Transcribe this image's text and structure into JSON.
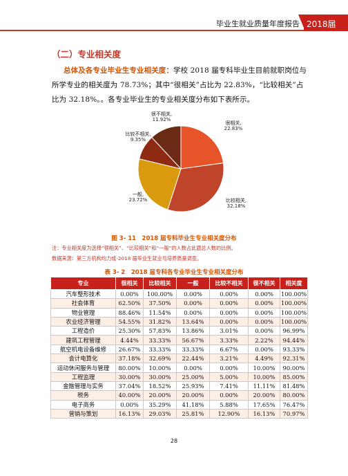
{
  "header": {
    "title": "毕业生就业质量年度报告",
    "year": "2018届"
  },
  "section": {
    "title": "（二）专业相关度"
  },
  "paragraph": {
    "lead": "总体及各专业毕业生专业相关度：",
    "body": "学校 2018 届专科毕业生目前就职岗位与所学专业的相关度为 78.73%；其中“很相关”占比为 22.83%，“比较相关”占比为 32.18%。。各专业毕业生的专业相关度分布如下表所示。"
  },
  "chart_data": {
    "type": "pie",
    "slices": [
      {
        "label": "很相关,",
        "value": 22.83,
        "value_label": "22.83%",
        "color": "#e8542a"
      },
      {
        "label": "比较相关,",
        "value": 32.18,
        "value_label": "32.18%",
        "color": "#c0442a"
      },
      {
        "label": "一般,",
        "value": 23.72,
        "value_label": "23.72%",
        "color": "#d99a0e"
      },
      {
        "label": "比较不相关,",
        "value": 9.35,
        "value_label": "9.35%",
        "color": "#8f2a12"
      },
      {
        "label": "很不相关,",
        "value": 11.92,
        "value_label": "11.92%",
        "color": "#6b2a14"
      }
    ]
  },
  "figure": {
    "caption": "图 3- 11　2018 届专科毕业生专业相关度分布"
  },
  "notes": {
    "line1": "注：专业相关度为选择“很相关”、“比较相关”和“一般”的人数占此题总人数的比例。",
    "line2": "数据来源：第三方机构均力成-2018 届毕业生就业与培养质量调查。"
  },
  "table": {
    "caption": "表 3- 2　2018 届专科各专业毕业生专业相关度分布",
    "headers": [
      "专业",
      "很相关",
      "比较相关",
      "一般",
      "比较不相关",
      "很不相关",
      "相关度"
    ],
    "rows": [
      [
        "汽车整形技术",
        "0.00%",
        "100.00%",
        "0.00%",
        "0.00%",
        "0.00%",
        "100.00%"
      ],
      [
        "社会体育",
        "62.50%",
        "37.50%",
        "0.00%",
        "0.00%",
        "0.00%",
        "100.00%"
      ],
      [
        "物业管理",
        "88.46%",
        "11.54%",
        "0.00%",
        "0.00%",
        "0.00%",
        "100.00%"
      ],
      [
        "农业经济管理",
        "54.55%",
        "31.82%",
        "13.64%",
        "0.00%",
        "0.00%",
        "100.00%"
      ],
      [
        "工程造价",
        "25.30%",
        "57.83%",
        "13.86%",
        "3.01%",
        "0.00%",
        "96.99%"
      ],
      [
        "建筑工程管理",
        "4.44%",
        "33.33%",
        "56.67%",
        "3.33%",
        "2.22%",
        "94.44%"
      ],
      [
        "航空机电设备维修",
        "26.67%",
        "33.33%",
        "33.33%",
        "6.67%",
        "0.00%",
        "93.33%"
      ],
      [
        "会计电算化",
        "37.18%",
        "32.69%",
        "22.44%",
        "3.21%",
        "4.49%",
        "92.31%"
      ],
      [
        "运动休闲服务与管理",
        "80.00%",
        "10.00%",
        "0.00%",
        "0.00%",
        "10.00%",
        "90.00%"
      ],
      [
        "工程监理",
        "30.00%",
        "30.00%",
        "25.00%",
        "5.00%",
        "10.00%",
        "85.00%"
      ],
      [
        "金融管理与实务",
        "37.04%",
        "18.52%",
        "25.93%",
        "7.41%",
        "11.11%",
        "81.48%"
      ],
      [
        "税务",
        "40.00%",
        "20.00%",
        "20.00%",
        "0.00%",
        "20.00%",
        "80.00%"
      ],
      [
        "电子商务",
        "0.00%",
        "35.29%",
        "41.18%",
        "5.88%",
        "17.65%",
        "76.47%"
      ],
      [
        "营销与策划",
        "16.13%",
        "29.03%",
        "25.81%",
        "12.90%",
        "16.13%",
        "70.97%"
      ]
    ]
  },
  "page": {
    "number": "28"
  }
}
